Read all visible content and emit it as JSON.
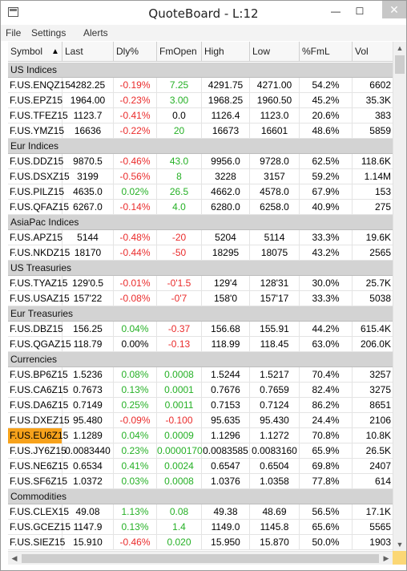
{
  "window": {
    "title": "QuoteBoard - L:12",
    "min_glyph": "—",
    "max_glyph": "☐",
    "close_glyph": "✕"
  },
  "menu": {
    "file": "File",
    "settings": "Settings",
    "alerts": "Alerts"
  },
  "columns": {
    "symbol": "Symbol",
    "sort_glyph": "▲",
    "last": "Last",
    "dly": "Dly%",
    "fmopen": "FmOpen",
    "high": "High",
    "low": "Low",
    "fml": "%FmL",
    "vol": "Vol"
  },
  "groups": [
    {
      "label": "US Indices",
      "rows": [
        {
          "symbol": "F.US.ENQZ15",
          "last": "4282.25",
          "dly": "-0.19%",
          "dly_dir": "neg",
          "fmopen": "7.25",
          "fmo_dir": "pos",
          "high": "4291.75",
          "low": "4271.00",
          "fml": "54.2%",
          "vol": "6602"
        },
        {
          "symbol": "F.US.EPZ15",
          "last": "1964.00",
          "dly": "-0.23%",
          "dly_dir": "neg",
          "fmopen": "3.00",
          "fmo_dir": "pos",
          "high": "1968.25",
          "low": "1960.50",
          "fml": "45.2%",
          "vol": "35.3K"
        },
        {
          "symbol": "F.US.TFEZ15",
          "last": "1123.7",
          "dly": "-0.41%",
          "dly_dir": "neg",
          "fmopen": "0.0",
          "fmo_dir": "zero",
          "high": "1126.4",
          "low": "1123.0",
          "fml": "20.6%",
          "vol": "383"
        },
        {
          "symbol": "F.US.YMZ15",
          "last": "16636",
          "dly": "-0.22%",
          "dly_dir": "neg",
          "fmopen": "20",
          "fmo_dir": "pos",
          "high": "16673",
          "low": "16601",
          "fml": "48.6%",
          "vol": "5859"
        }
      ]
    },
    {
      "label": "Eur Indices",
      "rows": [
        {
          "symbol": "F.US.DDZ15",
          "last": "9870.5",
          "dly": "-0.46%",
          "dly_dir": "neg",
          "fmopen": "43.0",
          "fmo_dir": "pos",
          "high": "9956.0",
          "low": "9728.0",
          "fml": "62.5%",
          "vol": "118.6K"
        },
        {
          "symbol": "F.US.DSXZ15",
          "last": "3199",
          "dly": "-0.56%",
          "dly_dir": "neg",
          "fmopen": "8",
          "fmo_dir": "pos",
          "high": "3228",
          "low": "3157",
          "fml": "59.2%",
          "vol": "1.14M"
        },
        {
          "symbol": "F.US.PILZ15",
          "last": "4635.0",
          "dly": "0.02%",
          "dly_dir": "pos",
          "fmopen": "26.5",
          "fmo_dir": "pos",
          "high": "4662.0",
          "low": "4578.0",
          "fml": "67.9%",
          "vol": "153"
        },
        {
          "symbol": "F.US.QFAZ15",
          "last": "6267.0",
          "dly": "-0.14%",
          "dly_dir": "neg",
          "fmopen": "4.0",
          "fmo_dir": "pos",
          "high": "6280.0",
          "low": "6258.0",
          "fml": "40.9%",
          "vol": "275"
        }
      ]
    },
    {
      "label": "AsiaPac Indices",
      "rows": [
        {
          "symbol": "F.US.APZ15",
          "last": "5144",
          "dly": "-0.48%",
          "dly_dir": "neg",
          "fmopen": "-20",
          "fmo_dir": "neg",
          "high": "5204",
          "low": "5114",
          "fml": "33.3%",
          "vol": "19.6K"
        },
        {
          "symbol": "F.US.NKDZ15",
          "last": "18170",
          "dly": "-0.44%",
          "dly_dir": "neg",
          "fmopen": "-50",
          "fmo_dir": "neg",
          "high": "18295",
          "low": "18075",
          "fml": "43.2%",
          "vol": "2565"
        }
      ]
    },
    {
      "label": "US Treasuries",
      "rows": [
        {
          "symbol": "F.US.TYAZ15",
          "last": "129'0.5",
          "dly": "-0.01%",
          "dly_dir": "neg",
          "fmopen": "-0'1.5",
          "fmo_dir": "neg",
          "high": "129'4",
          "low": "128'31",
          "fml": "30.0%",
          "vol": "25.7K"
        },
        {
          "symbol": "F.US.USAZ15",
          "last": "157'22",
          "dly": "-0.08%",
          "dly_dir": "neg",
          "fmopen": "-0'7",
          "fmo_dir": "neg",
          "high": "158'0",
          "low": "157'17",
          "fml": "33.3%",
          "vol": "5038"
        }
      ]
    },
    {
      "label": "Eur Treasuries",
      "rows": [
        {
          "symbol": "F.US.DBZ15",
          "last": "156.25",
          "dly": "0.04%",
          "dly_dir": "pos",
          "fmopen": "-0.37",
          "fmo_dir": "neg",
          "high": "156.68",
          "low": "155.91",
          "fml": "44.2%",
          "vol": "615.4K"
        },
        {
          "symbol": "F.US.QGAZ15",
          "last": "118.79",
          "dly": "0.00%",
          "dly_dir": "zero",
          "fmopen": "-0.13",
          "fmo_dir": "neg",
          "high": "118.99",
          "low": "118.45",
          "fml": "63.0%",
          "vol": "206.0K"
        }
      ]
    },
    {
      "label": "Currencies",
      "rows": [
        {
          "symbol": "F.US.BP6Z15",
          "last": "1.5236",
          "dly": "0.08%",
          "dly_dir": "pos",
          "fmopen": "0.0008",
          "fmo_dir": "pos",
          "high": "1.5244",
          "low": "1.5217",
          "fml": "70.4%",
          "vol": "3257"
        },
        {
          "symbol": "F.US.CA6Z15",
          "last": "0.7673",
          "dly": "0.13%",
          "dly_dir": "pos",
          "fmopen": "0.0001",
          "fmo_dir": "pos",
          "high": "0.7676",
          "low": "0.7659",
          "fml": "82.4%",
          "vol": "3275"
        },
        {
          "symbol": "F.US.DA6Z15",
          "last": "0.7149",
          "dly": "0.25%",
          "dly_dir": "pos",
          "fmopen": "0.0011",
          "fmo_dir": "pos",
          "high": "0.7153",
          "low": "0.7124",
          "fml": "86.2%",
          "vol": "8651"
        },
        {
          "symbol": "F.US.DXEZ15",
          "last": "95.480",
          "dly": "-0.09%",
          "dly_dir": "neg",
          "fmopen": "-0.100",
          "fmo_dir": "neg",
          "high": "95.635",
          "low": "95.430",
          "fml": "24.4%",
          "vol": "2106"
        },
        {
          "symbol": "F.US.EU6Z15",
          "highlight": true,
          "last": "1.1289",
          "dly": "0.04%",
          "dly_dir": "pos",
          "fmopen": "0.0009",
          "fmo_dir": "pos",
          "high": "1.1296",
          "low": "1.1272",
          "fml": "70.8%",
          "vol": "10.8K"
        },
        {
          "symbol": "F.US.JY6Z15",
          "last": "0.0083440",
          "dly": "0.23%",
          "dly_dir": "pos",
          "fmopen": "0.0000170",
          "fmo_dir": "pos",
          "high": "0.0083585",
          "low": "0.0083160",
          "fml": "65.9%",
          "vol": "26.5K"
        },
        {
          "symbol": "F.US.NE6Z15",
          "last": "0.6534",
          "dly": "0.41%",
          "dly_dir": "pos",
          "fmopen": "0.0024",
          "fmo_dir": "pos",
          "high": "0.6547",
          "low": "0.6504",
          "fml": "69.8%",
          "vol": "2407"
        },
        {
          "symbol": "F.US.SF6Z15",
          "last": "1.0372",
          "dly": "0.03%",
          "dly_dir": "pos",
          "fmopen": "0.0008",
          "fmo_dir": "pos",
          "high": "1.0376",
          "low": "1.0358",
          "fml": "77.8%",
          "vol": "614"
        }
      ]
    },
    {
      "label": "Commodities",
      "rows": [
        {
          "symbol": "F.US.CLEX15",
          "last": "49.08",
          "dly": "1.13%",
          "dly_dir": "pos",
          "fmopen": "0.08",
          "fmo_dir": "pos",
          "high": "49.38",
          "low": "48.69",
          "fml": "56.5%",
          "vol": "17.1K"
        },
        {
          "symbol": "F.US.GCEZ15",
          "last": "1147.9",
          "dly": "0.13%",
          "dly_dir": "pos",
          "fmopen": "1.4",
          "fmo_dir": "pos",
          "high": "1149.0",
          "low": "1145.8",
          "fml": "65.6%",
          "vol": "5565"
        },
        {
          "symbol": "F.US.SIEZ15",
          "last": "15.910",
          "dly": "-0.46%",
          "dly_dir": "neg",
          "fmopen": "0.020",
          "fmo_dir": "pos",
          "high": "15.950",
          "low": "15.870",
          "fml": "50.0%",
          "vol": "1903"
        }
      ]
    }
  ],
  "colors": {
    "negative": "#ea2b2b",
    "positive": "#25b025",
    "highlight": "#f7a21b",
    "group_bg": "#d3d3d3",
    "corner": "#fbd775"
  }
}
